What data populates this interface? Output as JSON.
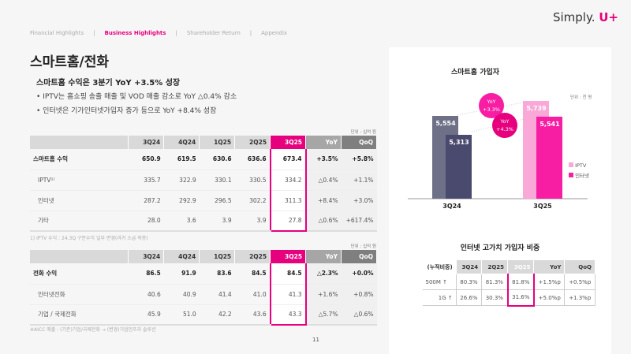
{
  "nav": {
    "items": [
      "Financial Highlights",
      "Business Highlights",
      "Shareholder Return",
      "Appendix"
    ],
    "active": 1,
    "sep": "|"
  },
  "logo": {
    "text": "Simply.",
    "accent": "U+"
  },
  "title": "스마트홈/전화",
  "subtitle": "스마트홈 수익은 3분기 YoY +3.5% 성장",
  "bullets": [
    "• IPTV는 홈쇼핑 송출 매출 및 VOD 매출 감소로 YoY △0.4% 감소",
    "• 인터넷은 기가인터넷가입자 증가 등으로 YoY +8.4% 성장"
  ],
  "unit": "단위 : 십억 원",
  "table1": {
    "headers": [
      "",
      "3Q24",
      "4Q24",
      "1Q25",
      "2Q25",
      "3Q25",
      "YoY",
      "QoQ"
    ],
    "rows": [
      [
        "스마트홈 수익",
        "650.9",
        "619.5",
        "630.6",
        "636.6",
        "673.4",
        "+3.5%",
        "+5.8%"
      ],
      [
        "IPTV¹⁾",
        "335.7",
        "322.9",
        "330.1",
        "330.5",
        "334.2",
        "△0.4%",
        "+1.1%"
      ],
      [
        "인터넷",
        "287.2",
        "292.9",
        "296.5",
        "302.2",
        "311.3",
        "+8.4%",
        "+3.0%"
      ],
      [
        "기타",
        "28.0",
        "3.6",
        "3.9",
        "3.9",
        "27.8",
        "△0.6%",
        "+617.4%"
      ]
    ],
    "footnote": "1) IPTV 수익 : 24.3Q 구분수익 일부 변경(과거 소급 적용)"
  },
  "table2": {
    "headers": [
      "",
      "3Q24",
      "4Q24",
      "1Q25",
      "2Q25",
      "3Q25",
      "YoY",
      "QoQ"
    ],
    "rows": [
      [
        "전화 수익",
        "86.5",
        "91.9",
        "83.6",
        "84.5",
        "84.5",
        "△2.3%",
        "+0.0%"
      ],
      [
        "인터넷전화",
        "40.6",
        "40.9",
        "41.4",
        "41.0",
        "41.3",
        "+1.6%",
        "+0.8%"
      ],
      [
        "기업 / 국제전화",
        "45.9",
        "51.0",
        "42.2",
        "43.6",
        "43.3",
        "△5.7%",
        "△0.6%"
      ]
    ],
    "footnote": "※AICC 매출 : (기존)기업/국제전화 → (변경)기업인프라 솔루션"
  },
  "page_number": "11",
  "chart_data": {
    "type": "bar",
    "title": "스마트홈 가입자",
    "unit": "단위 : 천 명",
    "categories": [
      "3Q24",
      "3Q25"
    ],
    "series": [
      {
        "name": "IPTV",
        "values": [
          5554,
          5739
        ],
        "colors": [
          "#6d7086",
          "#f9a8d8"
        ]
      },
      {
        "name": "인터넷",
        "values": [
          5313,
          5541
        ],
        "colors": [
          "#4a4a6e",
          "#f71ea3"
        ]
      }
    ],
    "value_labels": [
      [
        "5,554",
        "5,739"
      ],
      [
        "5,313",
        "5,541"
      ]
    ],
    "annotations": [
      {
        "label": "YoY",
        "value": "+3.3%"
      },
      {
        "label": "YoY",
        "value": "+4.3%"
      }
    ],
    "ylim": [
      4500,
      6000
    ],
    "legend": "right",
    "legend_colors": [
      "#f9a8d8",
      "#f71ea3"
    ]
  },
  "table3": {
    "title": "인터넷 고가치 가입자 비중",
    "headers": [
      "(누적비중)",
      "3Q24",
      "2Q25",
      "3Q25",
      "YoY",
      "QoQ"
    ],
    "rows": [
      [
        "500M ↑",
        "80.3%",
        "81.3%",
        "81.8%",
        "+1.5%p",
        "+0.5%p"
      ],
      [
        "1G ↑",
        "26.6%",
        "30.3%",
        "31.6%",
        "+5.0%p",
        "+1.3%p"
      ]
    ]
  }
}
